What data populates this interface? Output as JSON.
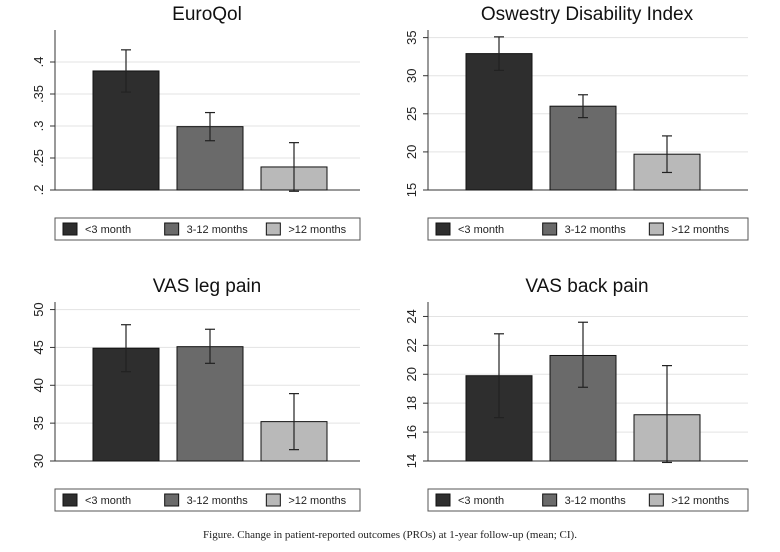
{
  "caption": "Figure.  Change in patient-reported outcomes (PROs) at 1-year follow-up (mean; CI).",
  "legend_labels": [
    "<3 month",
    "3-12 months",
    ">12 months"
  ],
  "series_colors": [
    "#2e2e2e",
    "#6a6a6a",
    "#b9b9b9"
  ],
  "chart_data": [
    {
      "type": "bar",
      "title": "EuroQol",
      "categories": [
        "<3 month",
        "3-12 months",
        ">12 months"
      ],
      "values": [
        0.386,
        0.299,
        0.236
      ],
      "ci_low": [
        0.353,
        0.277,
        0.198
      ],
      "ci_high": [
        0.419,
        0.321,
        0.274
      ],
      "ylim": [
        0.2,
        0.45
      ],
      "yticks": [
        0.2,
        0.25,
        0.3,
        0.35,
        0.4
      ],
      "ytick_labels": [
        ".2",
        ".25",
        ".3",
        ".35",
        ".4"
      ],
      "legend": "bottom",
      "grid": true
    },
    {
      "type": "bar",
      "title": "Oswestry Disability Index",
      "categories": [
        "<3 month",
        "3-12 months",
        ">12 months"
      ],
      "values": [
        32.9,
        26.0,
        19.7
      ],
      "ci_low": [
        30.7,
        24.5,
        17.3
      ],
      "ci_high": [
        35.1,
        27.5,
        22.1
      ],
      "ylim": [
        15,
        36
      ],
      "yticks": [
        15,
        20,
        25,
        30,
        35
      ],
      "ytick_labels": [
        "15",
        "20",
        "25",
        "30",
        "35"
      ],
      "legend": "bottom",
      "grid": true
    },
    {
      "type": "bar",
      "title": "VAS leg pain",
      "categories": [
        "<3 month",
        "3-12 months",
        ">12 months"
      ],
      "values": [
        44.9,
        45.1,
        35.2
      ],
      "ci_low": [
        41.8,
        42.9,
        31.5
      ],
      "ci_high": [
        48.0,
        47.4,
        38.9
      ],
      "ylim": [
        30,
        51
      ],
      "yticks": [
        30,
        35,
        40,
        45,
        50
      ],
      "ytick_labels": [
        "30",
        "35",
        "40",
        "45",
        "50"
      ],
      "legend": "bottom",
      "grid": true
    },
    {
      "type": "bar",
      "title": "VAS back pain",
      "categories": [
        "<3 month",
        "3-12 months",
        ">12 months"
      ],
      "values": [
        19.9,
        21.3,
        17.2
      ],
      "ci_low": [
        17.0,
        19.1,
        13.9
      ],
      "ci_high": [
        22.8,
        23.6,
        20.6
      ],
      "ylim": [
        14,
        25
      ],
      "yticks": [
        14,
        16,
        18,
        20,
        22,
        24
      ],
      "ytick_labels": [
        "14",
        "16",
        "18",
        "20",
        "22",
        "24"
      ],
      "legend": "bottom",
      "grid": true
    }
  ]
}
